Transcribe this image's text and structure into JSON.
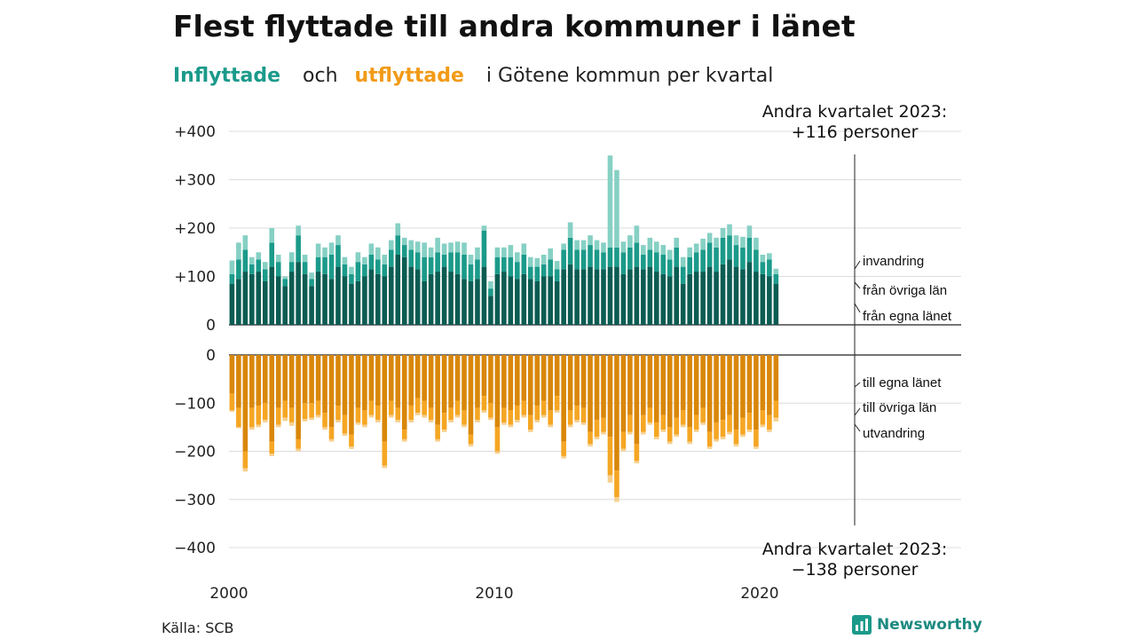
{
  "title": "Flest flyttade till andra kommuner i länet",
  "subtitle": {
    "part1": "Inflyttade",
    "part2": "och",
    "part3": "utflyttade",
    "part4": "i Götene  kommun  per  kvartal"
  },
  "source": "Källa: SCB",
  "brand": "Newsworthy",
  "colors": {
    "in_own": "#0b5c52",
    "in_other": "#1b9a8a",
    "in_immig": "#86d0c4",
    "out_own": "#d9870a",
    "out_other": "#f5a623",
    "out_emig": "#f7d08e",
    "teal_text": "#1b9a8a",
    "orange_text": "#f29a17"
  },
  "chart_data": {
    "type": "bar",
    "stacked": true,
    "x_start": 2000,
    "x_step_years": 0.25,
    "x_ticks": [
      2000,
      2010,
      2020
    ],
    "ylim": [
      -400,
      400
    ],
    "top_ticks": [
      "+400",
      "+300",
      "+200",
      "+100",
      "0"
    ],
    "top_tick_values": [
      400,
      300,
      200,
      100,
      0
    ],
    "bottom_ticks": [
      "0",
      "−100",
      "−200",
      "−300",
      "−400"
    ],
    "bottom_tick_values": [
      0,
      -100,
      -200,
      -300,
      -400
    ],
    "grid": true,
    "annotation_top": [
      "Andra kvartalet 2023:",
      "+116 personer"
    ],
    "annotation_bottom": [
      "Andra kvartalet 2023:",
      "−138 personer"
    ],
    "in_labels": [
      "invandring",
      "från övriga län",
      "från egna länet"
    ],
    "out_labels": [
      "till egna länet",
      "till övriga län",
      "utvandring"
    ],
    "inflow_totals": [
      133,
      170,
      185,
      140,
      150,
      130,
      200,
      145,
      100,
      150,
      205,
      145,
      108,
      168,
      160,
      170,
      185,
      140,
      120,
      150,
      140,
      168,
      160,
      145,
      175,
      210,
      180,
      175,
      172,
      170,
      160,
      180,
      168,
      170,
      172,
      170,
      145,
      160,
      205,
      90,
      160,
      160,
      165,
      150,
      168,
      140,
      138,
      145,
      158,
      132,
      168,
      212,
      175,
      175,
      185,
      175,
      170,
      350,
      320,
      172,
      185,
      205,
      165,
      180,
      172,
      165,
      155,
      180,
      140,
      160,
      168,
      178,
      190,
      180,
      200,
      208,
      185,
      182,
      205,
      180,
      145,
      148,
      116
    ],
    "inflow_own": [
      85,
      95,
      110,
      105,
      110,
      90,
      120,
      100,
      80,
      110,
      130,
      105,
      80,
      110,
      105,
      95,
      120,
      100,
      85,
      90,
      100,
      115,
      105,
      100,
      120,
      145,
      140,
      120,
      115,
      90,
      105,
      110,
      120,
      110,
      105,
      95,
      90,
      95,
      120,
      60,
      105,
      110,
      100,
      95,
      105,
      95,
      90,
      100,
      100,
      90,
      115,
      125,
      115,
      115,
      120,
      115,
      115,
      120,
      120,
      105,
      115,
      120,
      115,
      120,
      110,
      105,
      100,
      120,
      85,
      105,
      110,
      110,
      120,
      110,
      125,
      135,
      120,
      115,
      130,
      110,
      105,
      100,
      85
    ],
    "inflow_other": [
      20,
      40,
      45,
      20,
      25,
      25,
      50,
      30,
      15,
      20,
      55,
      25,
      15,
      30,
      35,
      50,
      45,
      25,
      20,
      40,
      25,
      30,
      30,
      25,
      35,
      40,
      25,
      35,
      35,
      50,
      35,
      40,
      25,
      40,
      45,
      50,
      35,
      40,
      75,
      15,
      35,
      30,
      40,
      35,
      40,
      25,
      30,
      25,
      35,
      25,
      40,
      55,
      40,
      40,
      45,
      40,
      35,
      40,
      40,
      45,
      45,
      50,
      30,
      35,
      40,
      40,
      35,
      40,
      35,
      35,
      40,
      45,
      50,
      50,
      55,
      50,
      45,
      45,
      50,
      45,
      25,
      35,
      20
    ],
    "outflow_totals": [
      -118,
      -152,
      -242,
      -155,
      -150,
      -140,
      -210,
      -150,
      -137,
      -147,
      -200,
      -138,
      -135,
      -130,
      -155,
      -180,
      -140,
      -168,
      -195,
      -145,
      -150,
      -130,
      -140,
      -235,
      -130,
      -140,
      -180,
      -140,
      -125,
      -130,
      -140,
      -180,
      -160,
      -140,
      -130,
      -150,
      -190,
      -140,
      -120,
      -135,
      -205,
      -145,
      -150,
      -140,
      -130,
      -160,
      -140,
      -130,
      -150,
      -120,
      -215,
      -150,
      -140,
      -145,
      -190,
      -175,
      -165,
      -265,
      -305,
      -200,
      -165,
      -225,
      -165,
      -145,
      -175,
      -160,
      -185,
      -170,
      -150,
      -185,
      -160,
      -145,
      -195,
      -180,
      -175,
      -165,
      -190,
      -170,
      -160,
      -195,
      -150,
      -160,
      -138
    ],
    "outflow_own": [
      -80,
      -110,
      -200,
      -110,
      -105,
      -100,
      -180,
      -110,
      -95,
      -110,
      -175,
      -100,
      -100,
      -95,
      -120,
      -150,
      -105,
      -125,
      -165,
      -110,
      -115,
      -95,
      -105,
      -180,
      -95,
      -110,
      -155,
      -105,
      -90,
      -95,
      -110,
      -145,
      -120,
      -110,
      -95,
      -115,
      -165,
      -110,
      -85,
      -100,
      -150,
      -110,
      -115,
      -105,
      -95,
      -125,
      -105,
      -95,
      -115,
      -85,
      -180,
      -115,
      -105,
      -110,
      -160,
      -135,
      -130,
      -170,
      -240,
      -160,
      -125,
      -185,
      -125,
      -110,
      -140,
      -125,
      -150,
      -130,
      -115,
      -150,
      -125,
      -110,
      -160,
      -140,
      -135,
      -125,
      -155,
      -130,
      -120,
      -155,
      -115,
      -125,
      -95
    ],
    "outflow_other": [
      -35,
      -40,
      -35,
      -40,
      -40,
      -35,
      -25,
      -35,
      -35,
      -30,
      -20,
      -33,
      -30,
      -30,
      -30,
      -25,
      -30,
      -38,
      -25,
      -30,
      -30,
      -30,
      -30,
      -50,
      -30,
      -25,
      -20,
      -30,
      -30,
      -30,
      -25,
      -30,
      -35,
      -25,
      -30,
      -30,
      -20,
      -25,
      -30,
      -30,
      -50,
      -30,
      -30,
      -30,
      -30,
      -30,
      -30,
      -30,
      -30,
      -30,
      -30,
      -30,
      -30,
      -30,
      -25,
      -35,
      -30,
      -80,
      -55,
      -35,
      -35,
      -35,
      -35,
      -30,
      -30,
      -30,
      -30,
      -35,
      -30,
      -30,
      -30,
      -30,
      -30,
      -35,
      -35,
      -35,
      -30,
      -35,
      -35,
      -35,
      -30,
      -30,
      -35
    ]
  }
}
